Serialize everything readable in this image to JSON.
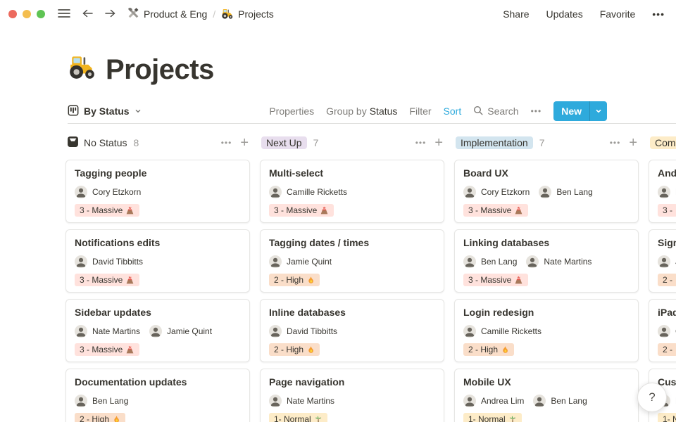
{
  "topbar": {
    "window_controls": [
      "close",
      "minimize",
      "expand"
    ],
    "breadcrumb": {
      "workspace_icon": "tools",
      "workspace": "Product & Eng",
      "separator": "/",
      "page_icon": "tractor",
      "page": "Projects"
    },
    "actions": [
      "Share",
      "Updates",
      "Favorite"
    ],
    "more_label": "•••"
  },
  "page": {
    "icon": "tractor",
    "title": "Projects"
  },
  "toolbar": {
    "view_icon": "board-icon",
    "view_label": "By Status",
    "properties_label": "Properties",
    "group_by_label": "Group by",
    "group_by_value": "Status",
    "filter_label": "Filter",
    "sort_label": "Sort",
    "search_icon": "search-icon",
    "search_label": "Search",
    "more_label": "•••",
    "new_label": "New"
  },
  "board": {
    "columns": [
      {
        "header": {
          "style": "plain",
          "icon": "inbox-icon",
          "label": "No Status",
          "count": "8"
        },
        "more_label": "•••",
        "add_label": "+",
        "cards": [
          {
            "title": "Tagging people",
            "members": [
              "Cory Etzkorn"
            ],
            "tag": {
              "label": "3 - Massive",
              "emoji": "volcano",
              "color": "red"
            }
          },
          {
            "title": "Notifications edits",
            "members": [
              "David Tibbitts"
            ],
            "tag": {
              "label": "3 - Massive",
              "emoji": "volcano",
              "color": "red"
            }
          },
          {
            "title": "Sidebar updates",
            "members": [
              "Nate Martins",
              "Jamie Quint"
            ],
            "tag": {
              "label": "3 - Massive",
              "emoji": "volcano",
              "color": "red"
            }
          },
          {
            "title": "Documentation updates",
            "members": [
              "Ben Lang"
            ],
            "tag": {
              "label": "2 - High",
              "emoji": "fire",
              "color": "orange"
            }
          }
        ]
      },
      {
        "header": {
          "style": "badge",
          "badge_color": "purple",
          "label": "Next Up",
          "count": "7"
        },
        "more_label": "•••",
        "add_label": "+",
        "cards": [
          {
            "title": "Multi-select",
            "members": [
              "Camille Ricketts"
            ],
            "tag": {
              "label": "3 - Massive",
              "emoji": "volcano",
              "color": "red"
            }
          },
          {
            "title": "Tagging dates / times",
            "members": [
              "Jamie Quint"
            ],
            "tag": {
              "label": "2 - High",
              "emoji": "fire",
              "color": "orange"
            }
          },
          {
            "title": "Inline databases",
            "members": [
              "David Tibbitts"
            ],
            "tag": {
              "label": "2 - High",
              "emoji": "fire",
              "color": "orange"
            }
          },
          {
            "title": "Page navigation",
            "members": [
              "Nate Martins"
            ],
            "tag": {
              "label": "1- Normal",
              "emoji": "palm",
              "color": "yellow"
            }
          }
        ]
      },
      {
        "header": {
          "style": "badge",
          "badge_color": "blue",
          "label": "Implementation",
          "count": "7"
        },
        "more_label": "•••",
        "add_label": "+",
        "cards": [
          {
            "title": "Board UX",
            "members": [
              "Cory Etzkorn",
              "Ben Lang"
            ],
            "tag": {
              "label": "3 - Massive",
              "emoji": "volcano",
              "color": "red"
            }
          },
          {
            "title": "Linking databases",
            "members": [
              "Ben Lang",
              "Nate Martins"
            ],
            "tag": {
              "label": "3 - Massive",
              "emoji": "volcano",
              "color": "red"
            }
          },
          {
            "title": "Login redesign",
            "members": [
              "Camille Ricketts"
            ],
            "tag": {
              "label": "2 - High",
              "emoji": "fire",
              "color": "orange"
            }
          },
          {
            "title": "Mobile UX",
            "members": [
              "Andrea Lim",
              "Ben Lang"
            ],
            "tag": {
              "label": "1- Normal",
              "emoji": "palm",
              "color": "yellow"
            }
          }
        ]
      },
      {
        "header": {
          "style": "badge",
          "badge_color": "yellow",
          "label": "Com",
          "count": ""
        },
        "more_label": "•••",
        "add_label": "+",
        "cards": [
          {
            "title": "And",
            "members": [
              "N"
            ],
            "tag": {
              "label": "3 -",
              "emoji": "",
              "color": "red"
            }
          },
          {
            "title": "Sign",
            "members": [
              "J"
            ],
            "tag": {
              "label": "2 -",
              "emoji": "",
              "color": "orange"
            }
          },
          {
            "title": "iPad",
            "members": [
              "C"
            ],
            "tag": {
              "label": "2 -",
              "emoji": "",
              "color": "orange"
            }
          },
          {
            "title": "Cus",
            "members": [
              "N"
            ],
            "tag": {
              "label": "1- N",
              "emoji": "",
              "color": "yellow"
            }
          }
        ]
      }
    ]
  },
  "help_label": "?",
  "colors": {
    "text": "#37352F",
    "muted": "#9B9A97",
    "accent_blue": "#2EAADC",
    "tag_red_bg": "#FFE2DD",
    "tag_orange_bg": "#FADEC9",
    "tag_yellow_bg": "#FDECC8",
    "badge_purple_bg": "#E8DEEE",
    "badge_blue_bg": "#D3E5EF",
    "badge_yellow_bg": "#FDECC8",
    "traffic_lights": [
      "#EC6A5E",
      "#F4BE4F",
      "#5FC454"
    ]
  }
}
